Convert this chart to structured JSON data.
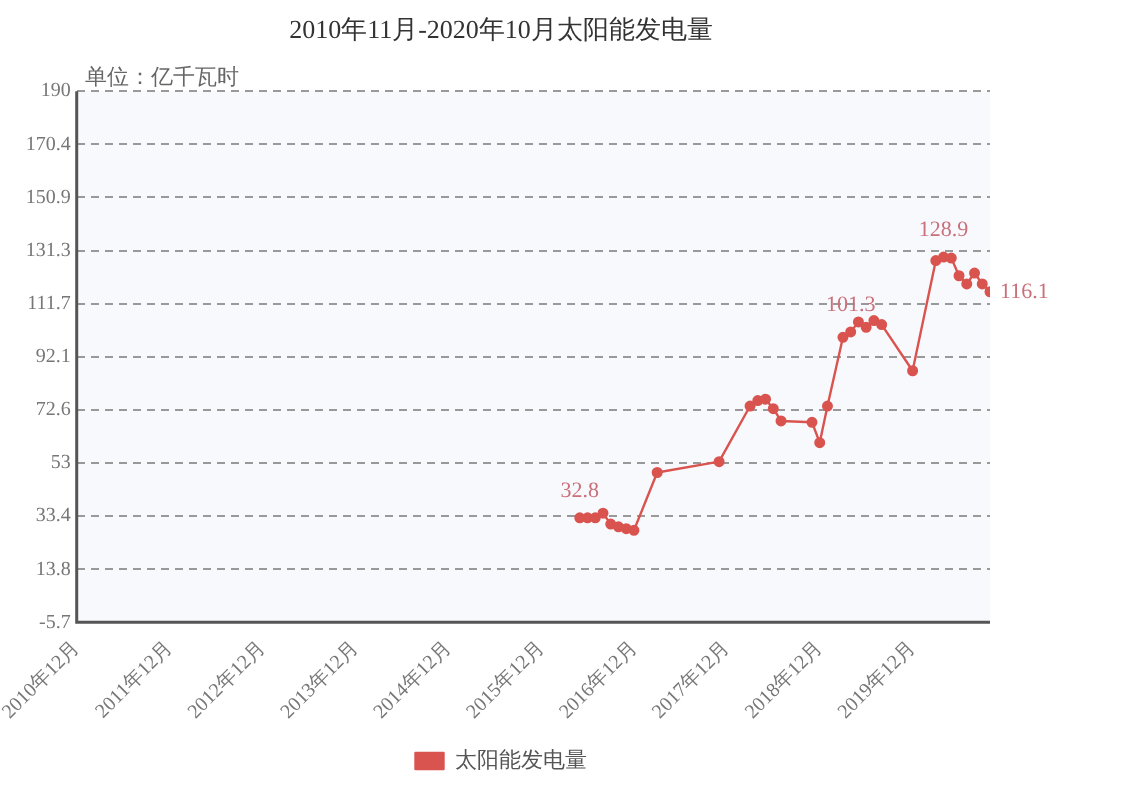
{
  "chart_data": {
    "type": "line",
    "title": "2010年11月-2020年10月太阳能发电量",
    "ylabel": "单位：亿千瓦时",
    "xlim": [
      "2010-12",
      "2020-10"
    ],
    "xticks": [
      {
        "value": "2010-12",
        "label": "2010年12月"
      },
      {
        "value": "2011-12",
        "label": "2011年12月"
      },
      {
        "value": "2012-12",
        "label": "2012年12月"
      },
      {
        "value": "2013-12",
        "label": "2013年12月"
      },
      {
        "value": "2014-12",
        "label": "2014年12月"
      },
      {
        "value": "2015-12",
        "label": "2015年12月"
      },
      {
        "value": "2016-12",
        "label": "2016年12月"
      },
      {
        "value": "2017-12",
        "label": "2017年12月"
      },
      {
        "value": "2018-12",
        "label": "2018年12月"
      },
      {
        "value": "2019-12",
        "label": "2019年12月"
      }
    ],
    "ylim": [
      -5.7,
      190
    ],
    "yticks": [
      -5.7,
      13.8,
      33.4,
      53,
      72.6,
      92.1,
      111.7,
      131.3,
      150.9,
      170.4,
      190
    ],
    "grid": "y",
    "legend": "bottom",
    "marker": "circle",
    "series": [
      {
        "name": "太阳能发电量",
        "color": "#d9534f",
        "x": [
          "2016-05",
          "2016-06",
          "2016-07",
          "2016-08",
          "2016-09",
          "2016-10",
          "2016-11",
          "2016-12",
          "2017-03",
          "2017-11",
          "2018-03",
          "2018-04",
          "2018-05",
          "2018-06",
          "2018-07",
          "2018-11",
          "2018-12",
          "2019-01",
          "2019-03",
          "2019-04",
          "2019-05",
          "2019-06",
          "2019-07",
          "2019-08",
          "2019-12",
          "2020-03",
          "2020-04",
          "2020-05",
          "2020-06",
          "2020-07",
          "2020-08",
          "2020-09",
          "2020-10"
        ],
        "values": [
          32.8,
          32.8,
          32.8,
          34.5,
          30.5,
          29.5,
          28.8,
          28.2,
          49.5,
          53.5,
          74,
          76,
          76.5,
          73,
          68.5,
          68,
          60.5,
          74,
          99.3,
          101.3,
          105,
          103,
          105.5,
          104,
          87,
          127.6,
          128.9,
          128.5,
          122,
          119,
          123,
          119,
          116.1
        ]
      }
    ],
    "annotations": [
      {
        "text": "32.8",
        "x": "2016-05",
        "y": 32.8
      },
      {
        "text": "101.3",
        "x": "2019-04",
        "y": 101.3
      },
      {
        "text": "128.9",
        "x": "2020-04",
        "y": 128.9
      },
      {
        "text": "116.1",
        "x": "2020-10",
        "y": 116.1
      }
    ]
  }
}
